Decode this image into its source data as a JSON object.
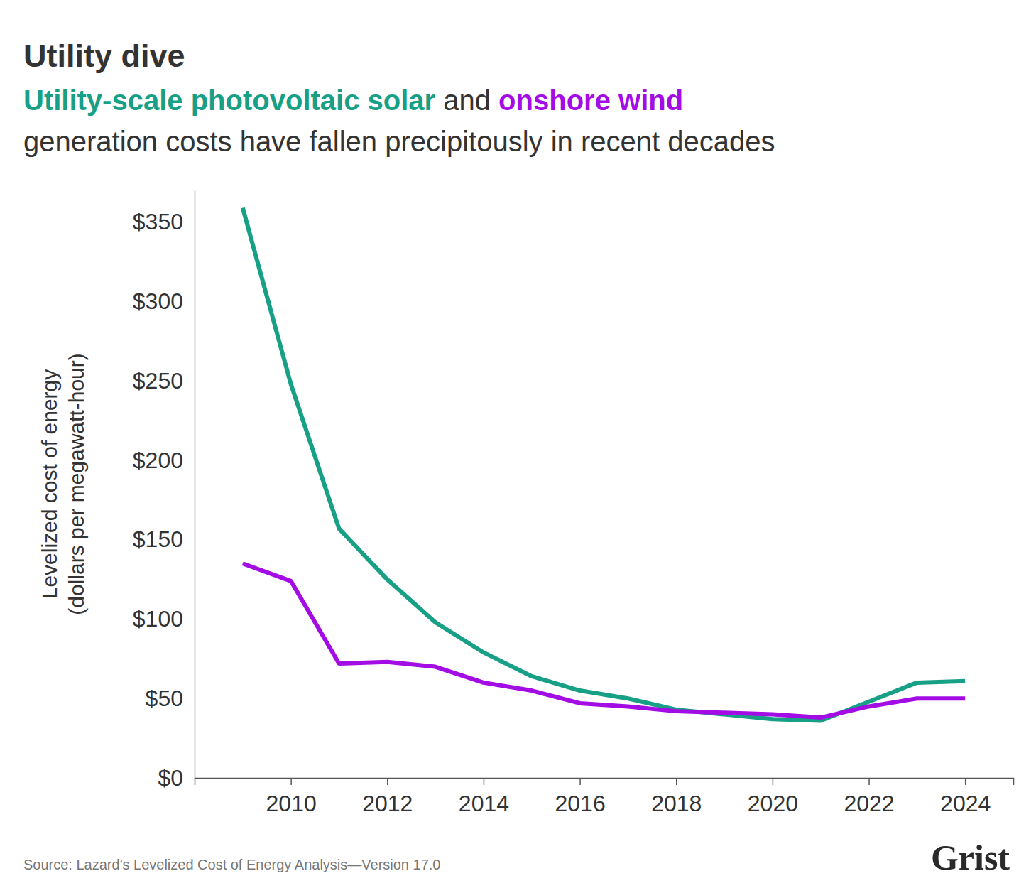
{
  "chart_data": {
    "type": "line",
    "title": "Utility dive",
    "subtitle": "Utility-scale photovoltaic solar and onshore wind generation costs have fallen precipitously in recent decades",
    "ylabel": [
      "Levelized cost of energy",
      "(dollars per megawatt-hour)"
    ],
    "source": "Source: Lazard's Levelized Cost of Energy Analysis—Version 17.0",
    "brand": "Grist",
    "x": [
      2009,
      2010,
      2011,
      2012,
      2013,
      2014,
      2015,
      2016,
      2017,
      2018,
      2019,
      2020,
      2021,
      2022,
      2023,
      2024
    ],
    "series": [
      {
        "name": "Utility-scale photovoltaic solar",
        "color": "#17a085",
        "values": [
          359,
          248,
          157,
          125,
          98,
          79,
          64,
          55,
          50,
          43,
          40,
          37,
          36,
          48,
          60,
          61
        ]
      },
      {
        "name": "onshore wind",
        "color": "#a40ce6",
        "values": [
          135,
          124,
          72,
          73,
          70,
          60,
          55,
          47,
          45,
          42,
          41,
          40,
          38,
          45,
          50,
          50
        ]
      }
    ],
    "xlim": [
      2008,
      2025
    ],
    "xticks": [
      2010,
      2012,
      2014,
      2016,
      2018,
      2020,
      2022,
      2024
    ],
    "ylim": [
      0,
      370
    ],
    "yticks": [
      {
        "value": 0,
        "label": "$0"
      },
      {
        "value": 50,
        "label": "$50"
      },
      {
        "value": 100,
        "label": "$100"
      },
      {
        "value": 150,
        "label": "$150"
      },
      {
        "value": 200,
        "label": "$200"
      },
      {
        "value": 250,
        "label": "$250"
      },
      {
        "value": 300,
        "label": "$300"
      },
      {
        "value": 350,
        "label": "$350"
      }
    ],
    "grid": false
  }
}
